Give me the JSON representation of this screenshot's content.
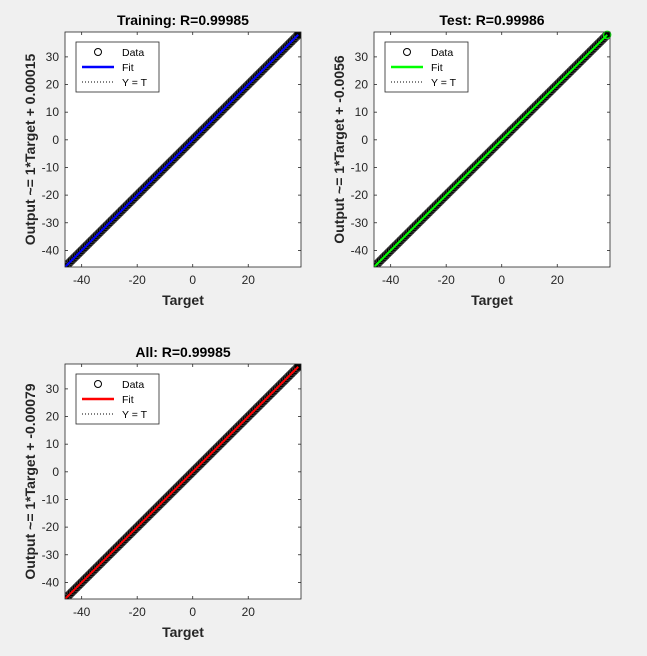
{
  "figure": {
    "background": "#f0f0f0"
  },
  "chart_data": [
    {
      "type": "scatter",
      "title": "Training: R=0.99985",
      "xlabel": "Target",
      "ylabel": "Output ~= 1*Target + 0.00015",
      "xlim": [
        -46,
        39
      ],
      "ylim": [
        -46,
        39
      ],
      "xticks": [
        -40,
        -20,
        0,
        20
      ],
      "yticks": [
        -40,
        -30,
        -20,
        -10,
        0,
        10,
        20,
        30
      ],
      "data_range": [
        -46,
        38
      ],
      "fit": {
        "slope": 1,
        "intercept": 0.00015,
        "color": "#0000ff"
      },
      "highlight_endpoint": false,
      "legend": {
        "position": "top-left",
        "entries": [
          "Data",
          "Fit",
          "Y = T"
        ]
      }
    },
    {
      "type": "scatter",
      "title": "Test: R=0.99986",
      "xlabel": "Target",
      "ylabel": "Output ~= 1*Target + -0.0056",
      "xlim": [
        -46,
        39
      ],
      "ylim": [
        -46,
        39
      ],
      "xticks": [
        -40,
        -20,
        0,
        20
      ],
      "yticks": [
        -40,
        -30,
        -20,
        -10,
        0,
        10,
        20,
        30
      ],
      "data_range": [
        -46,
        38
      ],
      "fit": {
        "slope": 1,
        "intercept": -0.0056,
        "color": "#00ff00"
      },
      "highlight_endpoint": true,
      "legend": {
        "position": "top-left",
        "entries": [
          "Data",
          "Fit",
          "Y = T"
        ]
      }
    },
    {
      "type": "scatter",
      "title": "All: R=0.99985",
      "xlabel": "Target",
      "ylabel": "Output ~= 1*Target + -0.00079",
      "xlim": [
        -46,
        39
      ],
      "ylim": [
        -46,
        39
      ],
      "xticks": [
        -40,
        -20,
        0,
        20
      ],
      "yticks": [
        -40,
        -30,
        -20,
        -10,
        0,
        10,
        20,
        30
      ],
      "data_range": [
        -46,
        38
      ],
      "fit": {
        "slope": 1,
        "intercept": -0.00079,
        "color": "#ff0000"
      },
      "highlight_endpoint": false,
      "legend": {
        "position": "top-left",
        "entries": [
          "Data",
          "Fit",
          "Y = T"
        ]
      }
    }
  ]
}
